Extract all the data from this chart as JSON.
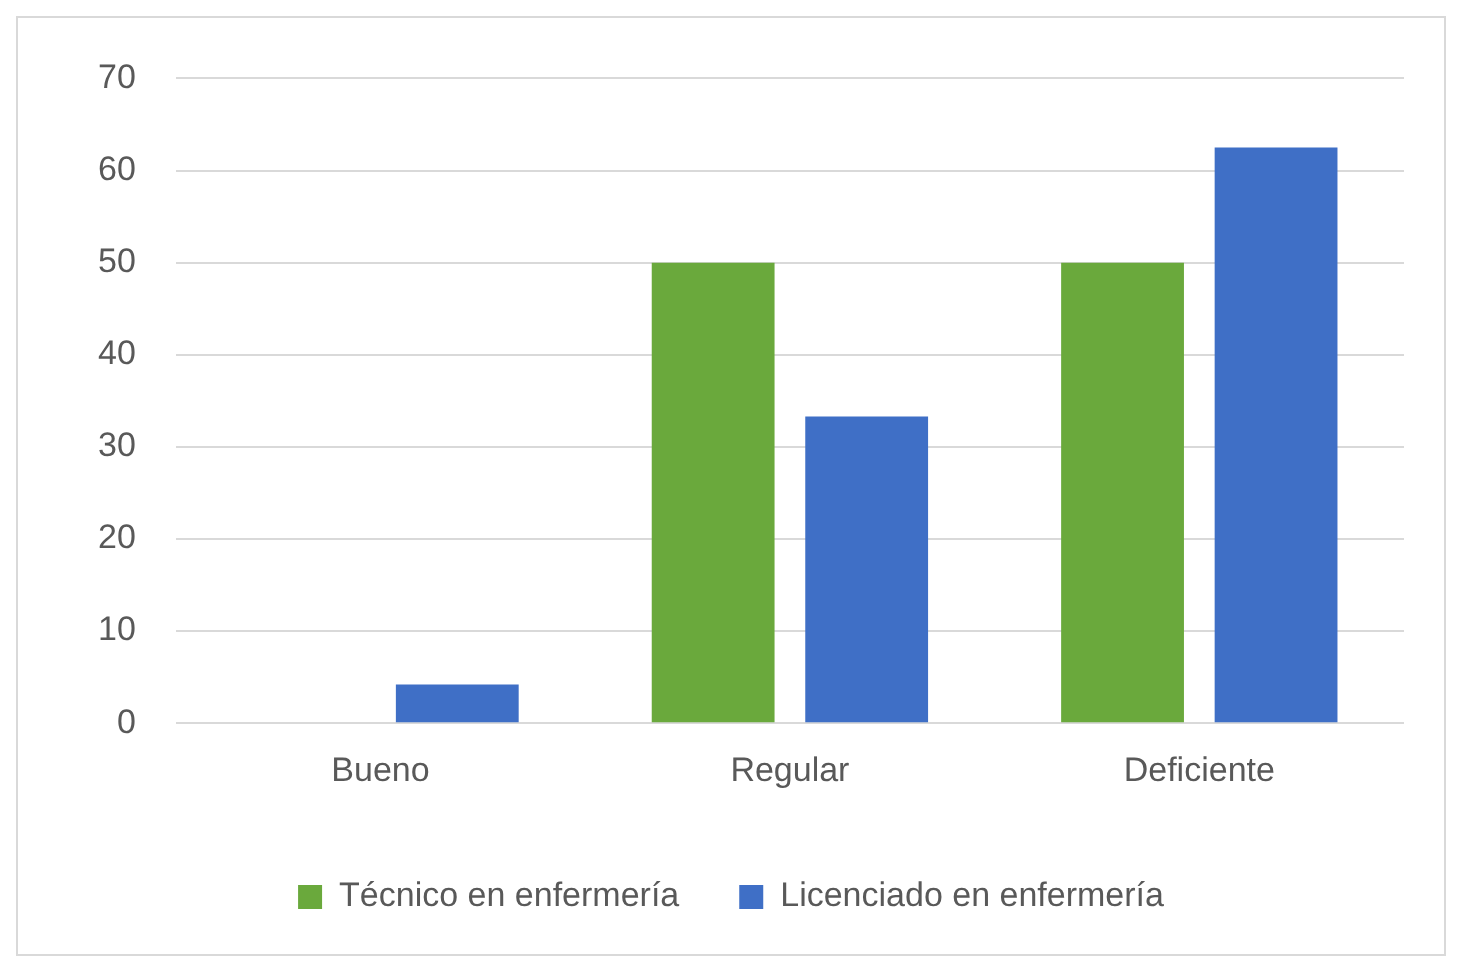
{
  "chart_data": {
    "type": "bar",
    "categories": [
      "Bueno",
      "Regular",
      "Deficiente"
    ],
    "series": [
      {
        "name": "Técnico en enfermería",
        "color": "#6aa93c",
        "values": [
          0,
          50,
          50
        ]
      },
      {
        "name": "Licenciado en enfermería",
        "color": "#3f6fc6",
        "values": [
          4.2,
          33.3,
          62.5
        ]
      }
    ],
    "ylim": [
      0,
      70
    ],
    "yticks": [
      0,
      10,
      20,
      30,
      40,
      50,
      60,
      70
    ],
    "grid": "y",
    "legend": "bottom"
  }
}
